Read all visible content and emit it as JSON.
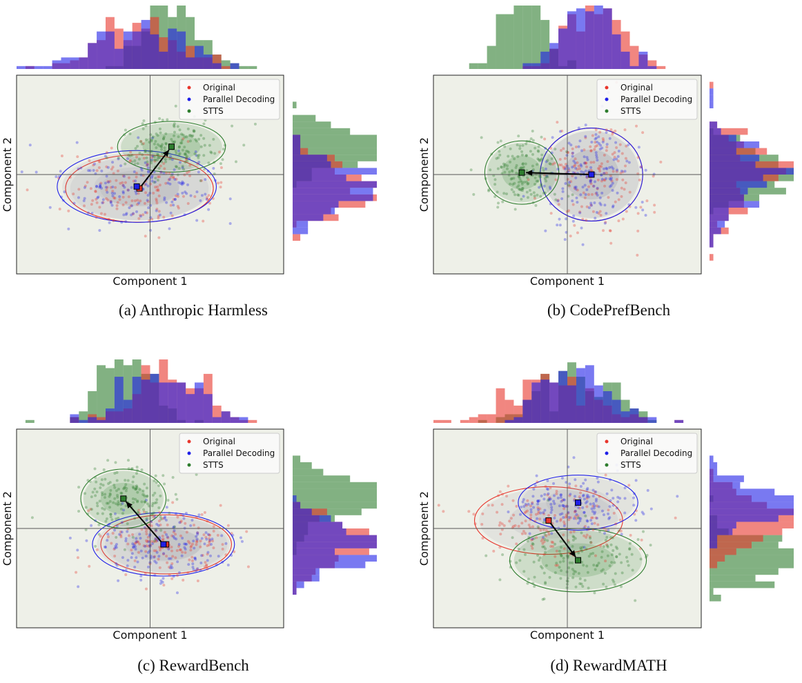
{
  "figure": {
    "legend_entries": [
      "Original",
      "Parallel Decoding",
      "STTS"
    ],
    "colors": {
      "Original": "#e8352c",
      "Parallel Decoding": "#1f1fe8",
      "STTS": "#2e7d2e",
      "panel_bg": "#eef0e8"
    }
  },
  "chart_data": [
    {
      "type": "scatter",
      "caption": "(a) Anthropic Harmless",
      "xlabel": "Component 1",
      "ylabel": "Component 2",
      "xlim": [
        -5,
        5
      ],
      "ylim": [
        -5,
        5
      ],
      "legend_position": "top-right",
      "series": [
        {
          "name": "Original",
          "center": [
            -0.4,
            -0.7
          ],
          "spread": [
            2.6,
            1.6
          ]
        },
        {
          "name": "Parallel Decoding",
          "center": [
            -0.5,
            -0.6
          ],
          "spread": [
            2.8,
            1.7
          ]
        },
        {
          "name": "STTS",
          "center": [
            0.8,
            1.4
          ],
          "spread": [
            1.9,
            1.2
          ]
        }
      ],
      "arrow_from": [
        -0.4,
        -0.7
      ],
      "arrow_to": [
        0.8,
        1.4
      ]
    },
    {
      "type": "scatter",
      "caption": "(b) CodePrefBench",
      "xlabel": "Component 1",
      "ylabel": "Component 2",
      "xlim": [
        -5,
        5
      ],
      "ylim": [
        -5,
        5
      ],
      "legend_position": "top-right",
      "series": [
        {
          "name": "Original",
          "center": [
            0.9,
            0.0
          ],
          "spread": [
            1.8,
            2.2
          ]
        },
        {
          "name": "Parallel Decoding",
          "center": [
            0.9,
            0.0
          ],
          "spread": [
            1.8,
            2.2
          ]
        },
        {
          "name": "STTS",
          "center": [
            -1.7,
            0.1
          ],
          "spread": [
            1.3,
            1.5
          ]
        }
      ],
      "arrow_from": [
        0.9,
        0.0
      ],
      "arrow_to": [
        -1.7,
        0.1
      ]
    },
    {
      "type": "scatter",
      "caption": "(c) RewardBench",
      "xlabel": "Component 1",
      "ylabel": "Component 2",
      "xlim": [
        -5,
        5
      ],
      "ylim": [
        -5,
        5
      ],
      "legend_position": "top-right",
      "series": [
        {
          "name": "Original",
          "center": [
            0.6,
            -0.8
          ],
          "spread": [
            2.3,
            1.4
          ]
        },
        {
          "name": "Parallel Decoding",
          "center": [
            0.5,
            -0.8
          ],
          "spread": [
            2.5,
            1.5
          ]
        },
        {
          "name": "STTS",
          "center": [
            -1.0,
            1.5
          ],
          "spread": [
            1.5,
            1.4
          ]
        }
      ],
      "arrow_from": [
        0.5,
        -0.8
      ],
      "arrow_to": [
        -1.0,
        1.5
      ]
    },
    {
      "type": "scatter",
      "caption": "(d) RewardMATH",
      "xlabel": "Component 1",
      "ylabel": "Component 2",
      "xlim": [
        -5,
        5
      ],
      "ylim": [
        -5,
        5
      ],
      "legend_position": "top-right",
      "series": [
        {
          "name": "Original",
          "center": [
            -0.7,
            0.4
          ],
          "spread": [
            2.6,
            1.6
          ]
        },
        {
          "name": "Parallel Decoding",
          "center": [
            0.4,
            1.3
          ],
          "spread": [
            2.1,
            1.3
          ]
        },
        {
          "name": "STTS",
          "center": [
            0.4,
            -1.6
          ],
          "spread": [
            2.4,
            1.5
          ]
        }
      ],
      "arrow_from": [
        -0.7,
        0.4
      ],
      "arrow_to": [
        0.4,
        -1.6
      ]
    }
  ]
}
